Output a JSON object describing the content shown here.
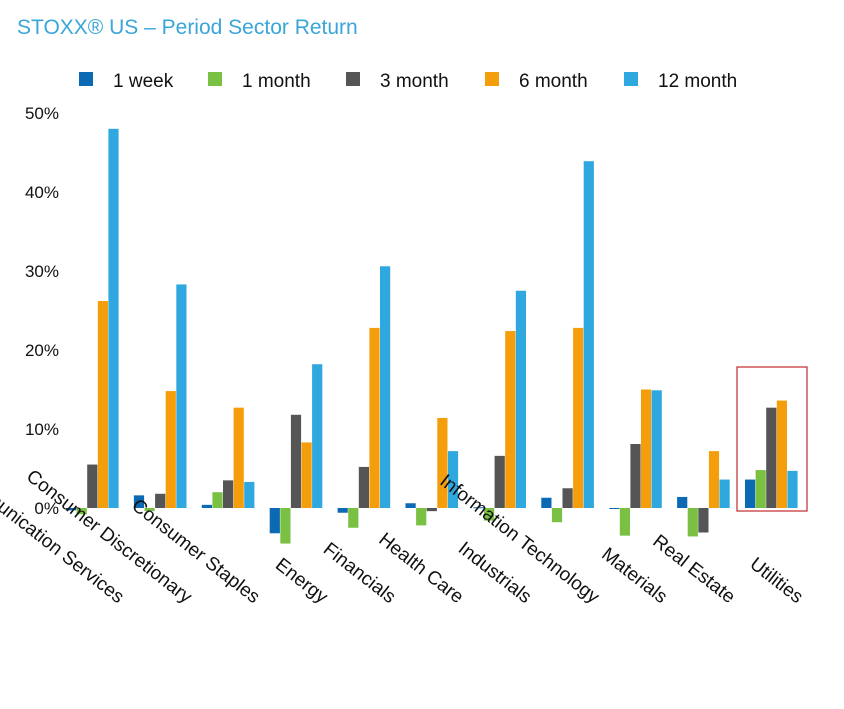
{
  "chart_data": {
    "type": "bar",
    "title": "STOXX® US – Period Sector Return",
    "xlabel": "",
    "ylabel": "",
    "ylim": [
      -7,
      50
    ],
    "yticks": [
      0,
      10,
      20,
      30,
      40,
      50
    ],
    "ytick_labels": [
      "0%",
      "10%",
      "20%",
      "30%",
      "40%",
      "50%"
    ],
    "grid": false,
    "legend_position": "top",
    "categories": [
      "Communication Services",
      "Consumer Discretionary",
      "Consumer Staples",
      "Energy",
      "Financials",
      "Health Care",
      "Industrials",
      "Information Technology",
      "Materials",
      "Real Estate",
      "Utilities"
    ],
    "series": [
      {
        "name": "1 week",
        "color": "#0b6ab3",
        "values": [
          -0.3,
          1.6,
          0.4,
          -3.2,
          -0.6,
          0.6,
          0.1,
          1.3,
          0.0,
          1.4,
          3.6
        ]
      },
      {
        "name": "1 month",
        "color": "#7ac143",
        "values": [
          -0.8,
          -0.4,
          2.0,
          -4.5,
          -2.5,
          -2.2,
          -1.6,
          -1.8,
          -3.5,
          -3.6,
          4.8
        ]
      },
      {
        "name": "3 month",
        "color": "#555555",
        "values": [
          5.5,
          1.8,
          3.5,
          11.8,
          5.2,
          -0.4,
          6.6,
          2.5,
          8.1,
          -3.1,
          12.7
        ]
      },
      {
        "name": "6 month",
        "color": "#f59e0b",
        "values": [
          26.2,
          14.8,
          12.7,
          8.3,
          22.8,
          11.4,
          22.4,
          22.8,
          15.0,
          7.2,
          13.6
        ]
      },
      {
        "name": "12 month",
        "color": "#2ea8df",
        "values": [
          48.0,
          28.3,
          3.3,
          18.2,
          30.6,
          7.2,
          27.5,
          43.9,
          14.9,
          3.6,
          4.7
        ]
      }
    ],
    "highlight": {
      "category": "Utilities",
      "color": "#c0282d"
    }
  }
}
